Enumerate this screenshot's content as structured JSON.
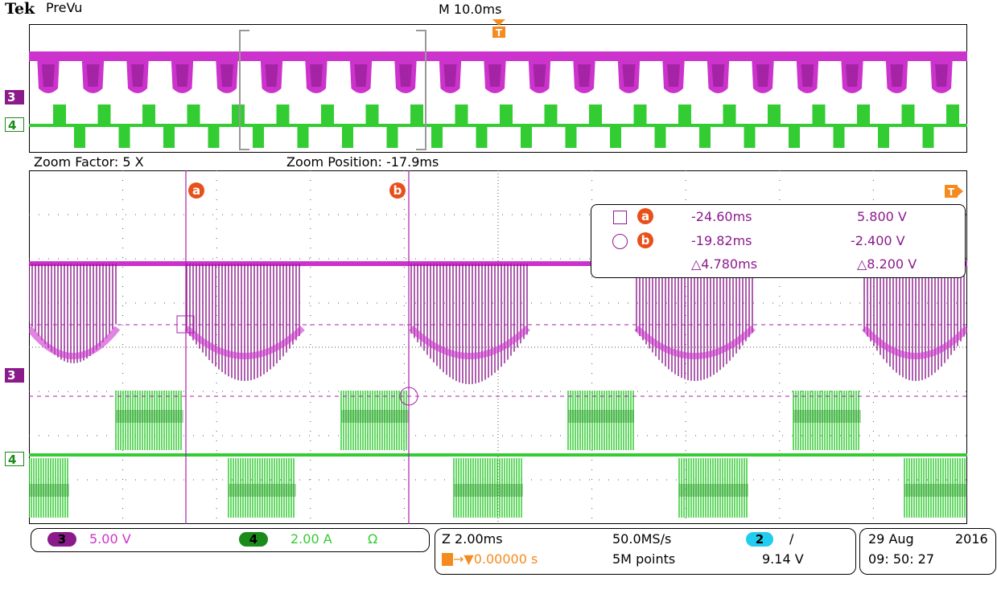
{
  "header": {
    "brand": "Tek",
    "mode": "PreVu",
    "timebase": "M 10.0ms"
  },
  "zoom": {
    "factor_text": "Zoom Factor: 5 X",
    "position_text": "Zoom Position: -17.9ms"
  },
  "markers": {
    "ch3": "3",
    "ch4": "4",
    "trigger": "T",
    "cursor_a": "a",
    "cursor_b": "b"
  },
  "cursor_readout": {
    "row_a": {
      "time": "-24.60ms",
      "value": "5.800 V"
    },
    "row_b": {
      "time": "-19.82ms",
      "value": "-2.400 V"
    },
    "delta": {
      "time": "△4.780ms",
      "value": "△8.200 V"
    }
  },
  "channels": {
    "ch3": {
      "label": "3",
      "scale": "5.00 V",
      "color": "#cc33cc"
    },
    "ch4": {
      "label": "4",
      "scale": "2.00 A",
      "unit": "Ω",
      "color": "#33cc33"
    }
  },
  "acquisition": {
    "zoom_timebase": "Z 2.00ms",
    "trigger_position": "→▼0.00000 s",
    "sample_rate": "50.0MS/s",
    "record_length": "5M points",
    "trigger_source": "2",
    "trigger_slope": "∕",
    "trigger_level": "9.14 V"
  },
  "datetime": {
    "date": "29 Aug",
    "year": "2016",
    "time": "09: 50: 27"
  },
  "colors": {
    "ch3": "#cc33cc",
    "ch3_dark": "#8b1a8b",
    "ch4": "#33cc33",
    "ch4_dark": "#1a8a1a",
    "trigger_badge": "#f58a1f",
    "cursor_badge": "#e8501b",
    "ch2_badge": "#22ccee"
  }
}
